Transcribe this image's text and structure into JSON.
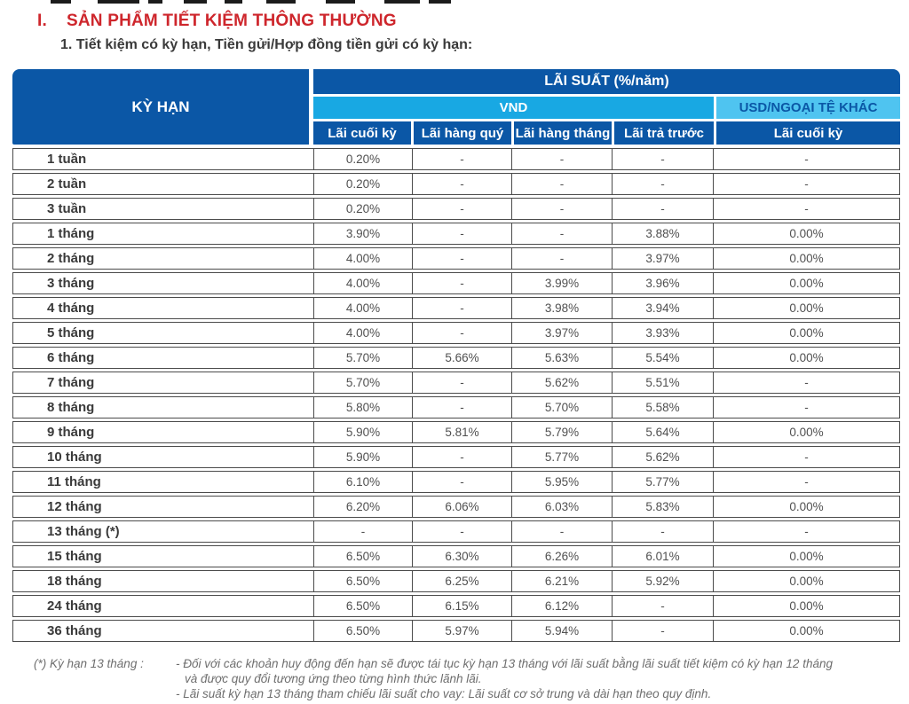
{
  "page": {
    "section_number": "I.",
    "section_title": "SẢN PHẨM TIẾT KIỆM THÔNG THƯỜNG",
    "subsection_title": "1. Tiết kiệm có kỳ hạn, Tiền gửi/Hợp đồng tiền gửi có kỳ hạn:"
  },
  "colors": {
    "heading_red": "#CE262C",
    "header_dark_blue": "#0B57A6",
    "vnd_band_blue": "#18A8E3",
    "usd_band_cyan": "#4FC4F0",
    "row_border_gray": "#4b4b4b"
  },
  "table": {
    "header": {
      "term_column": "KỲ HẠN",
      "title": "LÃI SUẤT (%/năm)",
      "group_vnd": "VND",
      "group_usd": "USD/NGOẠI TỆ KHÁC",
      "columns": [
        "Lãi cuối kỳ",
        "Lãi hàng quý",
        "Lãi hàng tháng",
        "Lãi trả trước",
        "Lãi cuối kỳ"
      ]
    },
    "rows": [
      {
        "term": "1 tuần",
        "values": [
          "0.20%",
          "-",
          "-",
          "-",
          "-"
        ]
      },
      {
        "term": "2 tuần",
        "values": [
          "0.20%",
          "-",
          "-",
          "-",
          "-"
        ]
      },
      {
        "term": "3 tuần",
        "values": [
          "0.20%",
          "-",
          "-",
          "-",
          "-"
        ]
      },
      {
        "term": "1 tháng",
        "values": [
          "3.90%",
          "-",
          "-",
          "3.88%",
          "0.00%"
        ]
      },
      {
        "term": "2 tháng",
        "values": [
          "4.00%",
          "-",
          "-",
          "3.97%",
          "0.00%"
        ]
      },
      {
        "term": "3 tháng",
        "values": [
          "4.00%",
          "-",
          "3.99%",
          "3.96%",
          "0.00%"
        ]
      },
      {
        "term": "4 tháng",
        "values": [
          "4.00%",
          "-",
          "3.98%",
          "3.94%",
          "0.00%"
        ]
      },
      {
        "term": "5 tháng",
        "values": [
          "4.00%",
          "-",
          "3.97%",
          "3.93%",
          "0.00%"
        ]
      },
      {
        "term": "6 tháng",
        "values": [
          "5.70%",
          "5.66%",
          "5.63%",
          "5.54%",
          "0.00%"
        ]
      },
      {
        "term": "7 tháng",
        "values": [
          "5.70%",
          "-",
          "5.62%",
          "5.51%",
          "-"
        ]
      },
      {
        "term": "8 tháng",
        "values": [
          "5.80%",
          "-",
          "5.70%",
          "5.58%",
          "-"
        ]
      },
      {
        "term": "9 tháng",
        "values": [
          "5.90%",
          "5.81%",
          "5.79%",
          "5.64%",
          "0.00%"
        ]
      },
      {
        "term": "10 tháng",
        "values": [
          "5.90%",
          "-",
          "5.77%",
          "5.62%",
          "-"
        ]
      },
      {
        "term": "11 tháng",
        "values": [
          "6.10%",
          "-",
          "5.95%",
          "5.77%",
          "-"
        ]
      },
      {
        "term": "12 tháng",
        "values": [
          "6.20%",
          "6.06%",
          "6.03%",
          "5.83%",
          "0.00%"
        ]
      },
      {
        "term": "13 tháng (*)",
        "values": [
          "-",
          "-",
          "-",
          "-",
          "-"
        ]
      },
      {
        "term": "15 tháng",
        "values": [
          "6.50%",
          "6.30%",
          "6.26%",
          "6.01%",
          "0.00%"
        ]
      },
      {
        "term": "18 tháng",
        "values": [
          "6.50%",
          "6.25%",
          "6.21%",
          "5.92%",
          "0.00%"
        ]
      },
      {
        "term": "24 tháng",
        "values": [
          "6.50%",
          "6.15%",
          "6.12%",
          "-",
          "0.00%"
        ]
      },
      {
        "term": "36 tháng",
        "values": [
          "6.50%",
          "5.97%",
          "5.94%",
          "-",
          "0.00%"
        ]
      }
    ]
  },
  "footnote": {
    "label": "(*) Kỳ hạn 13 tháng :",
    "item1_line1": "- Đối với các khoản huy động đến hạn sẽ được tái tục kỳ hạn 13 tháng với lãi suất bằng lãi suất tiết kiệm có kỳ hạn 12 tháng",
    "item1_line2": "và được quy đổi tương ứng theo từng hình thức lãnh lãi.",
    "item2": "- Lãi suất kỳ hạn 13 tháng tham chiếu lãi suất cho vay: Lãi suất cơ sở trung và dài hạn theo quy định."
  }
}
